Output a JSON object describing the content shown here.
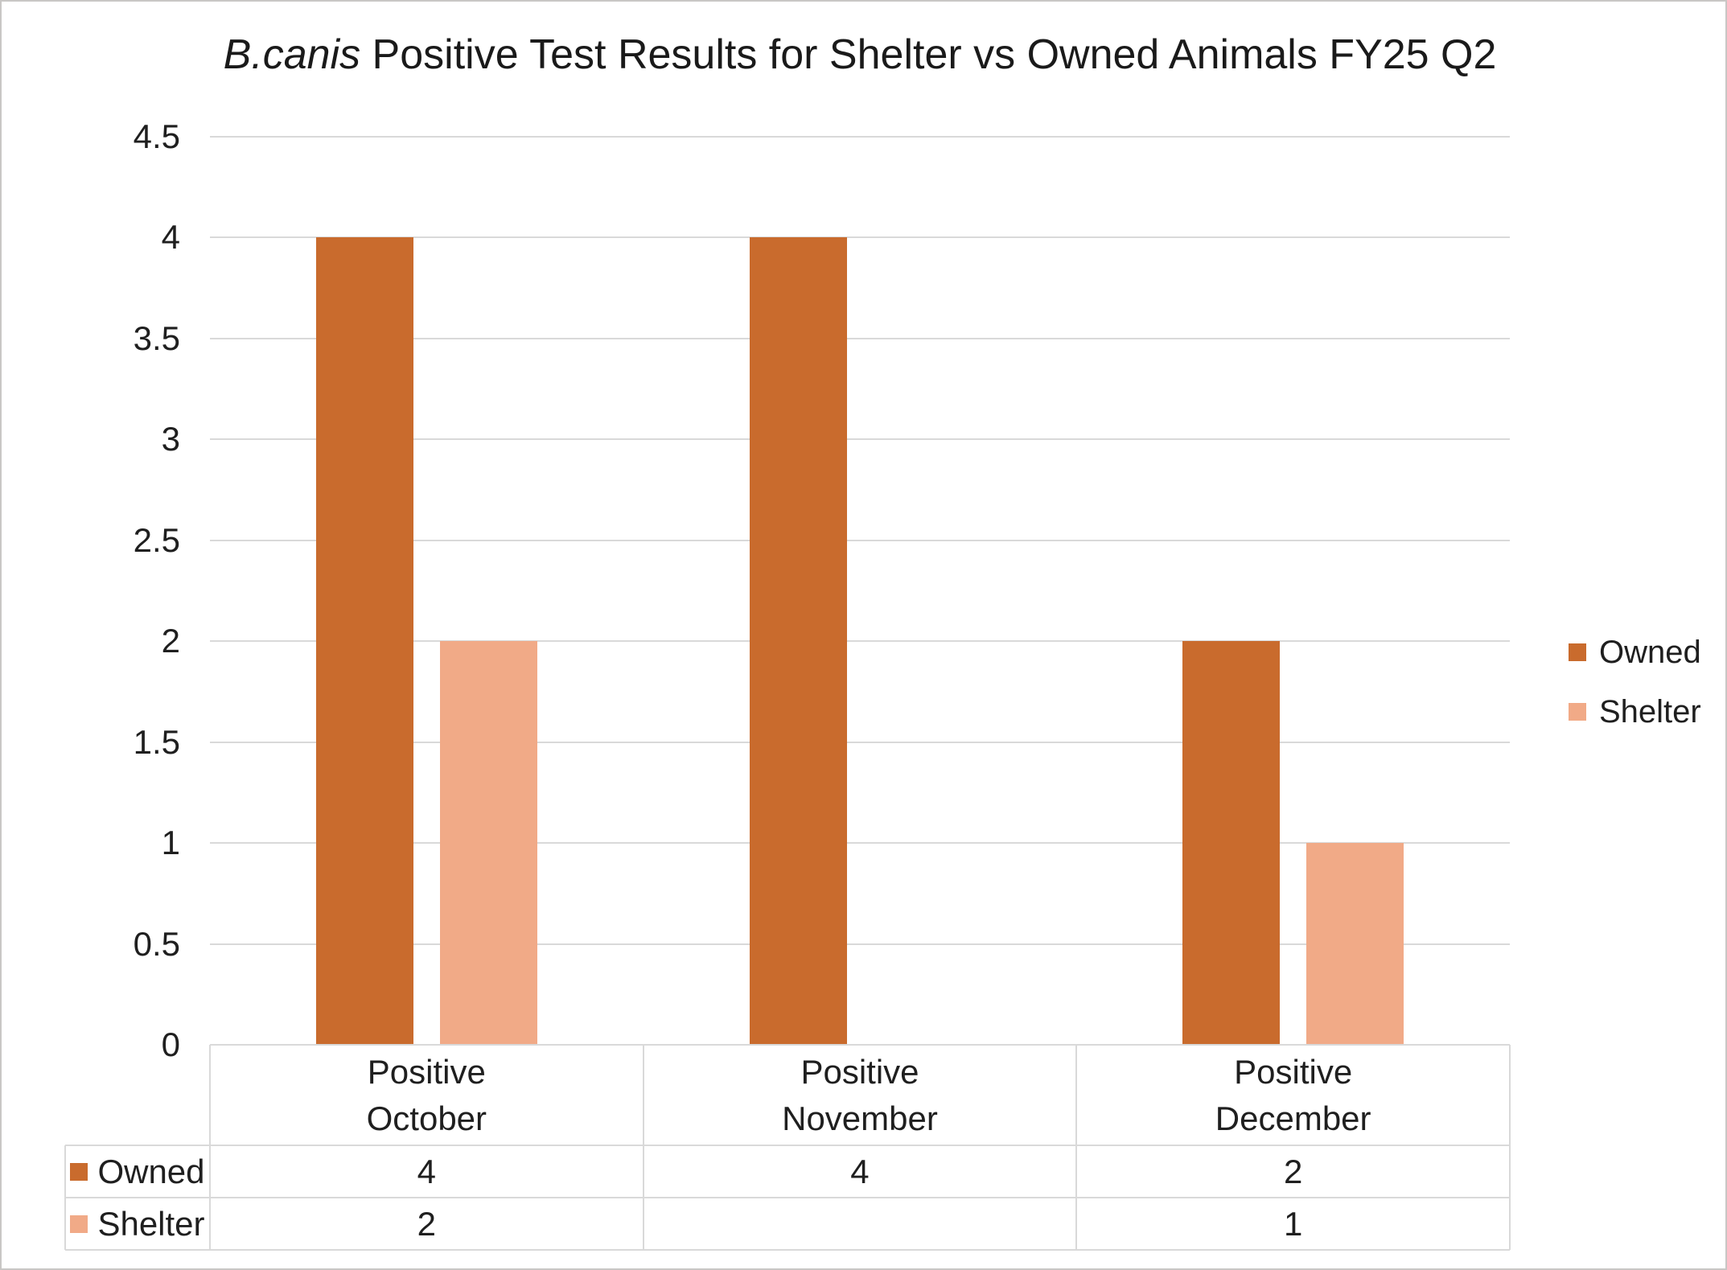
{
  "title": {
    "species": "B.canis",
    "rest": " Positive Test Results for Shelter vs Owned Animals FY25 Q2"
  },
  "y_axis": {
    "tick_labels": [
      "0",
      "0.5",
      "1",
      "1.5",
      "2",
      "2.5",
      "3",
      "3.5",
      "4",
      "4.5"
    ],
    "tick_values": [
      0,
      0.5,
      1,
      1.5,
      2,
      2.5,
      3,
      3.5,
      4,
      4.5
    ]
  },
  "chart_data": {
    "type": "bar",
    "title": "B.canis Positive Test Results for Shelter vs Owned Animals FY25 Q2",
    "categories": [
      "Positive October",
      "Positive November",
      "Positive December"
    ],
    "category_lines": [
      [
        "Positive",
        "October"
      ],
      [
        "Positive",
        "November"
      ],
      [
        "Positive",
        "December"
      ]
    ],
    "series": [
      {
        "name": "Owned",
        "color": "#C96B2D",
        "values": [
          4,
          4,
          2
        ],
        "display_values": [
          "4",
          "4",
          "2"
        ]
      },
      {
        "name": "Shelter",
        "color": "#F1AA87",
        "values": [
          2,
          null,
          1
        ],
        "display_values": [
          "2",
          "",
          "1"
        ]
      }
    ],
    "ylim": [
      0,
      4.5
    ],
    "ytick_step": 0.5,
    "grid": true,
    "legend_position": "right",
    "data_table_shown": true
  },
  "colors": {
    "grid": "#D9D9D9",
    "table_border": "#D9D9D9",
    "text": "#1F1F1F",
    "frame_border": "#C9C7C5",
    "background": "#FFFFFF"
  }
}
